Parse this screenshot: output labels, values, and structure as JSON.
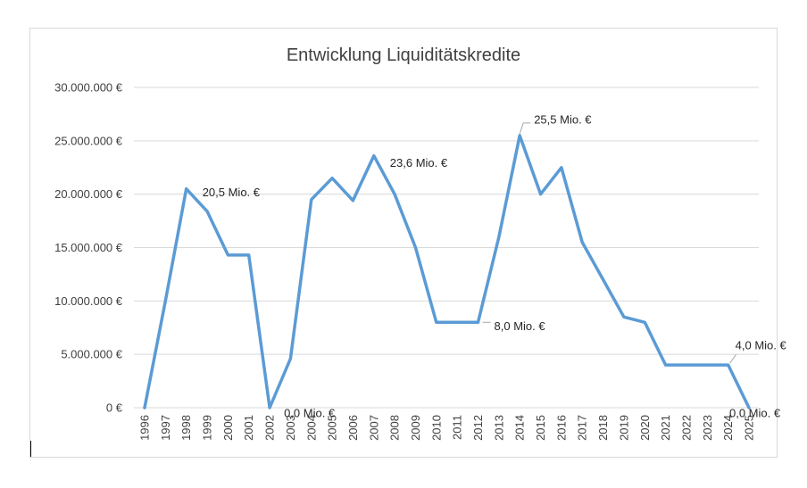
{
  "chart_data": {
    "type": "line",
    "title": "Entwicklung Liquiditätskredite",
    "xlabel": "",
    "ylabel": "",
    "categories": [
      "1996",
      "1997",
      "1998",
      "1999",
      "2000",
      "2001",
      "2002",
      "2003",
      "2004",
      "2005",
      "2006",
      "2007",
      "2008",
      "2009",
      "2010",
      "2011",
      "2012",
      "2013",
      "2014",
      "2015",
      "2016",
      "2017",
      "2018",
      "2019",
      "2020",
      "2021",
      "2022",
      "2023",
      "2024",
      "2025"
    ],
    "series": [
      {
        "name": "Liquiditätskredite",
        "color": "#5B9BD5",
        "values": [
          0,
          10000000,
          20500000,
          18400000,
          14300000,
          14300000,
          0,
          4600000,
          19500000,
          21500000,
          19400000,
          23600000,
          20000000,
          15000000,
          8000000,
          8000000,
          8000000,
          16000000,
          25500000,
          20000000,
          22500000,
          15500000,
          12000000,
          8500000,
          8000000,
          4000000,
          4000000,
          4000000,
          4000000,
          0
        ]
      }
    ],
    "ylim": [
      0,
      30000000
    ],
    "yticks": [
      0,
      5000000,
      10000000,
      15000000,
      20000000,
      25000000,
      30000000
    ],
    "ytick_labels": [
      "0 €",
      "5.000.000 €",
      "10.000.000 €",
      "15.000.000 €",
      "20.000.000 €",
      "25.000.000 €",
      "30.000.000 €"
    ],
    "grid": true,
    "data_labels": [
      {
        "index": 2,
        "text": "20,5 Mio. €",
        "leader": false
      },
      {
        "index": 6,
        "text": "0,0 Mio. €",
        "leader": false
      },
      {
        "index": 11,
        "text": "23,6 Mio. €",
        "leader": false
      },
      {
        "index": 16,
        "text": "8,0 Mio. €",
        "leader": true
      },
      {
        "index": 18,
        "text": "25,5 Mio. €",
        "leader": true
      },
      {
        "index": 28,
        "text": "4,0 Mio. €",
        "leader": true
      },
      {
        "index": 29,
        "text": "0,0 Mio. €",
        "leader": false
      }
    ]
  }
}
